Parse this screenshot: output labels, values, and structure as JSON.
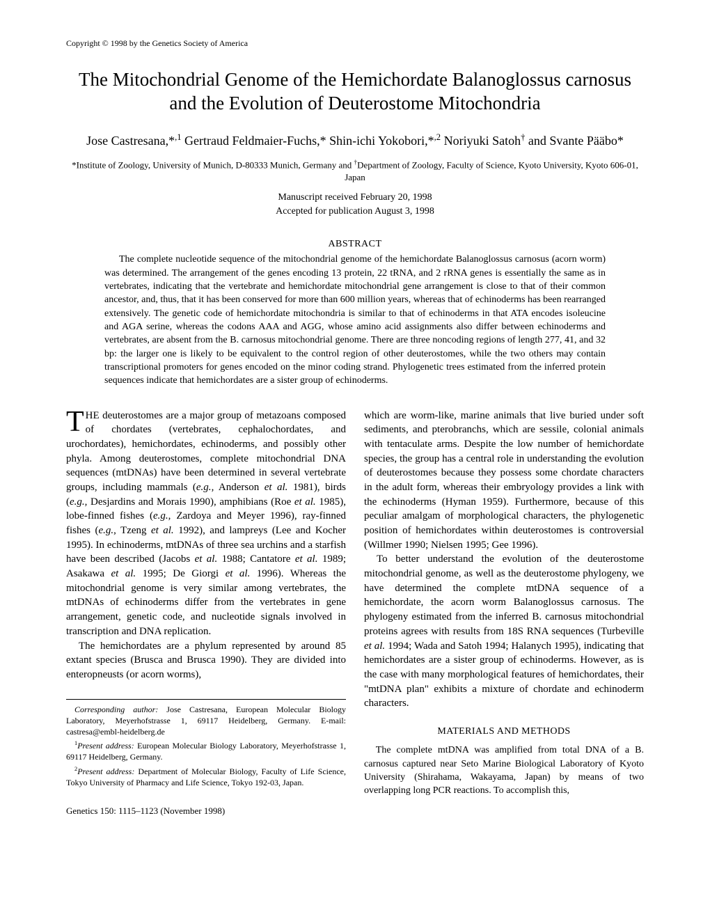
{
  "copyright": "Copyright © 1998 by the Genetics Society of America",
  "title": "The Mitochondrial Genome of the Hemichordate Balanoglossus carnosus and the Evolution of Deuterostome Mitochondria",
  "authors_html": "Jose Castresana,*<sup>,1</sup> Gertraud Feldmaier-Fuchs,* Shin-ichi Yokobori,*<sup>,2</sup> Noriyuki Satoh<sup>†</sup> and Svante Pääbo*",
  "affiliation_html": "*Institute of Zoology, University of Munich, D-80333 Munich, Germany and <sup>†</sup>Department of Zoology, Faculty of Science, Kyoto University, Kyoto 606-01, Japan",
  "manuscript_received": "Manuscript received February 20, 1998",
  "accepted": "Accepted for publication August 3, 1998",
  "abstract_heading": "ABSTRACT",
  "abstract_body": "The complete nucleotide sequence of the mitochondrial genome of the hemichordate Balanoglossus carnosus (acorn worm) was determined. The arrangement of the genes encoding 13 protein, 22 tRNA, and 2 rRNA genes is essentially the same as in vertebrates, indicating that the vertebrate and hemichordate mitochondrial gene arrangement is close to that of their common ancestor, and, thus, that it has been conserved for more than 600 million years, whereas that of echinoderms has been rearranged extensively. The genetic code of hemichordate mitochondria is similar to that of echinoderms in that ATA encodes isoleucine and AGA serine, whereas the codons AAA and AGG, whose amino acid assignments also differ between echinoderms and vertebrates, are absent from the B. carnosus mitochondrial genome. There are three noncoding regions of length 277, 41, and 32 bp: the larger one is likely to be equivalent to the control region of other deuterostomes, while the two others may contain transcriptional promoters for genes encoded on the minor coding strand. Phylogenetic trees estimated from the inferred protein sequences indicate that hemichordates are a sister group of echinoderms.",
  "col1_p1_html": "<span class=\"dropcap\">T</span>HE deuterostomes are a major group of metazoans composed of chordates (vertebrates, cephalochordates, and urochordates), hemichordates, echinoderms, and possibly other phyla. Among deuterostomes, complete mitochondrial DNA sequences (mtDNAs) have been determined in several vertebrate groups, including mammals (<i>e.g.</i>, Anderson <i>et al.</i> 1981), birds (<i>e.g.</i>, Desjardins and Morais 1990), amphibians (Roe <i>et al.</i> 1985), lobe-finned fishes (<i>e.g.</i>, Zardoya and Meyer 1996), ray-finned fishes (<i>e.g.</i>, Tzeng <i>et al.</i> 1992), and lampreys (Lee and Kocher 1995). In echinoderms, mtDNAs of three sea urchins and a starfish have been described (Jacobs <i>et al.</i> 1988; Cantatore <i>et al.</i> 1989; Asakawa <i>et al.</i> 1995; De Giorgi <i>et al.</i> 1996). Whereas the mitochondrial genome is very similar among vertebrates, the mtDNAs of echinoderms differ from the vertebrates in gene arrangement, genetic code, and nucleotide signals involved in transcription and DNA replication.",
  "col1_p2_html": "The hemichordates are a phylum represented by around 85 extant species (Brusca and Brusca 1990). They are divided into enteropneusts (or acorn worms),",
  "col2_p1_html": "which are worm-like, marine animals that live buried under soft sediments, and pterobranchs, which are sessile, colonial animals with tentaculate arms. Despite the low number of hemichordate species, the group has a central role in understanding the evolution of deuterostomes because they possess some chordate characters in the adult form, whereas their embryology provides a link with the echinoderms (Hyman 1959). Furthermore, because of this peculiar amalgam of morphological characters, the phylogenetic position of hemichordates within deuterostomes is controversial (Willmer 1990; Nielsen 1995; Gee 1996).",
  "col2_p2_html": "To better understand the evolution of the deuterostome mitochondrial genome, as well as the deuterostome phylogeny, we have determined the complete mtDNA sequence of a hemichordate, the acorn worm Balanoglossus carnosus. The phylogeny estimated from the inferred B. carnosus mitochondrial proteins agrees with results from 18S RNA sequences (Turbeville <i>et al.</i> 1994; Wada and Satoh 1994; Halanych 1995), indicating that hemichordates are a sister group of echinoderms. However, as is the case with many morphological features of hemichordates, their \"mtDNA plan\" exhibits a mixture of chordate and echinoderm characters.",
  "materials_heading": "MATERIALS AND METHODS",
  "materials_p1_html": "The complete mtDNA was amplified from total DNA of a B. carnosus captured near Seto Marine Biological Laboratory of Kyoto University (Shirahama, Wakayama, Japan) by means of two overlapping long PCR reactions. To accomplish this,",
  "footnote_corresponding": "<i>Corresponding author:</i> Jose Castresana, European Molecular Biology Laboratory, Meyerhofstrasse 1, 69117 Heidelberg, Germany. E-mail: castresa@embl-heidelberg.de",
  "footnote_1": "<sup>1</sup><i>Present address:</i> European Molecular Biology Laboratory, Meyerhofstrasse 1, 69117 Heidelberg, Germany.",
  "footnote_2": "<sup>2</sup><i>Present address:</i> Department of Molecular Biology, Faculty of Life Science, Tokyo University of Pharmacy and Life Science, Tokyo 192-03, Japan.",
  "citation": "Genetics 150: 1115–1123 (November 1998)"
}
